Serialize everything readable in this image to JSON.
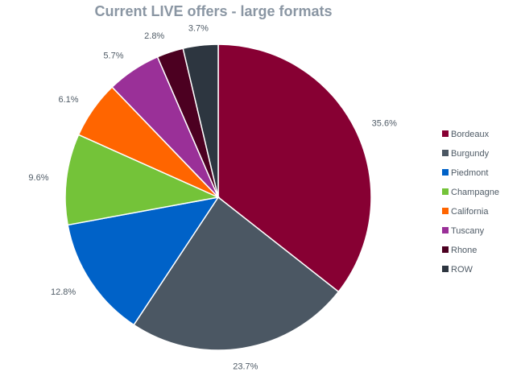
{
  "chart_data": {
    "type": "pie",
    "title": "Current LIVE offers - large formats",
    "categories": [
      "Bordeaux",
      "Burgundy",
      "Piedmont",
      "Champagne",
      "California",
      "Tuscany",
      "Rhone",
      "ROW"
    ],
    "values": [
      35.6,
      23.7,
      12.8,
      9.6,
      6.1,
      5.7,
      2.8,
      3.7
    ],
    "labels": [
      "35.6%",
      "23.7%",
      "12.8%",
      "9.6%",
      "6.1%",
      "5.7%",
      "2.8%",
      "3.7%"
    ],
    "colors": [
      "#870033",
      "#4b5763",
      "#0062c8",
      "#74c339",
      "#ff6500",
      "#9a3098",
      "#4c0021",
      "#2d3640"
    ],
    "legend_position": "right",
    "start_angle": "12 o'clock",
    "direction": "clockwise"
  }
}
